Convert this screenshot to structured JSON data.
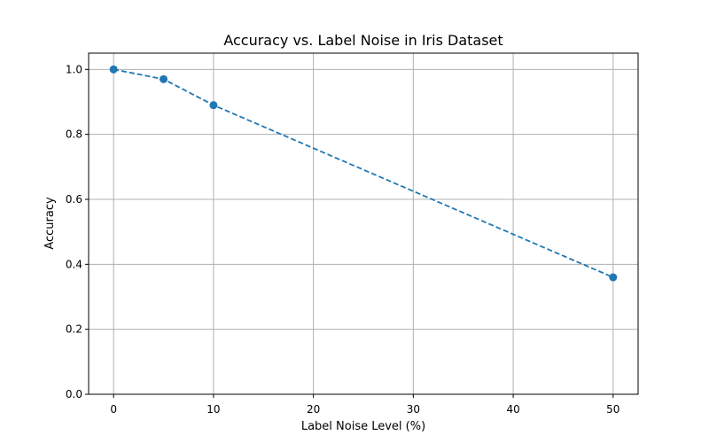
{
  "chart_data": {
    "type": "line",
    "title": "Accuracy vs. Label Noise in Iris Dataset",
    "xlabel": "Label Noise Level (%)",
    "ylabel": "Accuracy",
    "xlim": [
      -2.5,
      52.5
    ],
    "ylim": [
      0.0,
      1.05
    ],
    "xticks": [
      0,
      10,
      20,
      30,
      40,
      50
    ],
    "yticks": [
      0.0,
      0.2,
      0.4,
      0.6,
      0.8,
      1.0
    ],
    "xtick_labels": [
      "0",
      "10",
      "20",
      "30",
      "40",
      "50"
    ],
    "ytick_labels": [
      "0.0",
      "0.2",
      "0.4",
      "0.6",
      "0.8",
      "1.0"
    ],
    "grid": true,
    "series": [
      {
        "x": [
          0,
          5,
          10,
          50
        ],
        "y": [
          1.0,
          0.97,
          0.89,
          0.36
        ],
        "color": "#1f77b4",
        "line_style": "dashed",
        "marker": "circle"
      }
    ]
  }
}
